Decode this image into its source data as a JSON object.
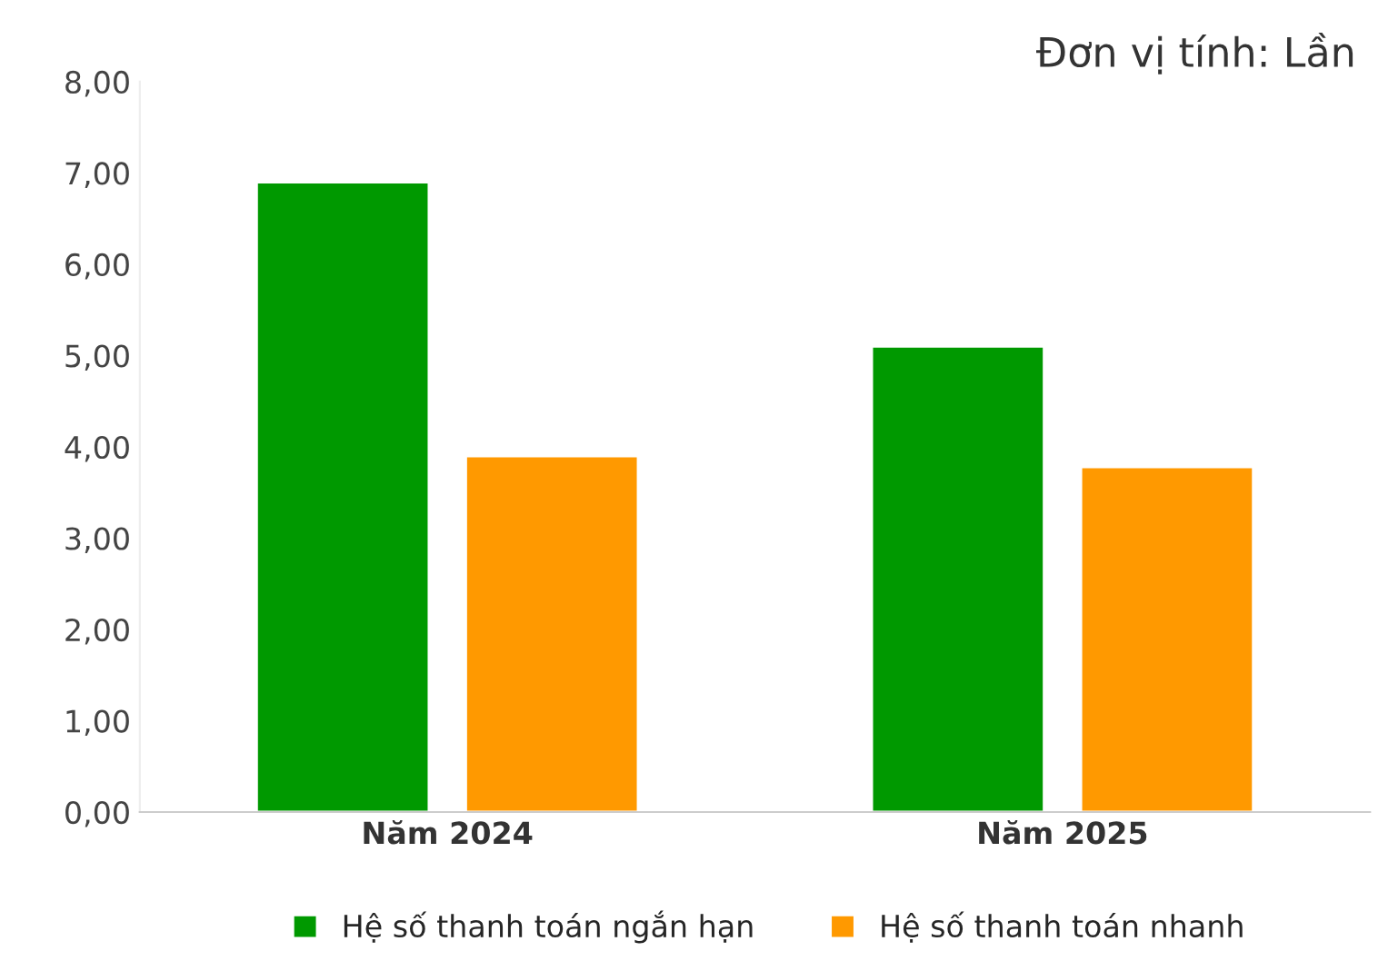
{
  "chart_data": {
    "type": "bar",
    "categories": [
      "Năm 2024",
      "Năm 2025"
    ],
    "series": [
      {
        "name": "Hệ số thanh toán ngắn hạn",
        "color": "#009900",
        "values": [
          6.9,
          5.1
        ]
      },
      {
        "name": "Hệ số thanh toán nhanh",
        "color": "#ff9900",
        "values": [
          3.9,
          3.78
        ]
      }
    ],
    "ylim": [
      0,
      8
    ],
    "yticks": [
      {
        "value": 0,
        "label": "0,00"
      },
      {
        "value": 1,
        "label": "1,00"
      },
      {
        "value": 2,
        "label": "2,00"
      },
      {
        "value": 3,
        "label": "3,00"
      },
      {
        "value": 4,
        "label": "4,00"
      },
      {
        "value": 5,
        "label": "5,00"
      },
      {
        "value": 6,
        "label": "6,00"
      },
      {
        "value": 7,
        "label": "7,00"
      },
      {
        "value": 8,
        "label": "8,00"
      }
    ],
    "annotations": [
      "Đơn vị tính: Lần"
    ],
    "grid": false,
    "legend": "bottom"
  }
}
